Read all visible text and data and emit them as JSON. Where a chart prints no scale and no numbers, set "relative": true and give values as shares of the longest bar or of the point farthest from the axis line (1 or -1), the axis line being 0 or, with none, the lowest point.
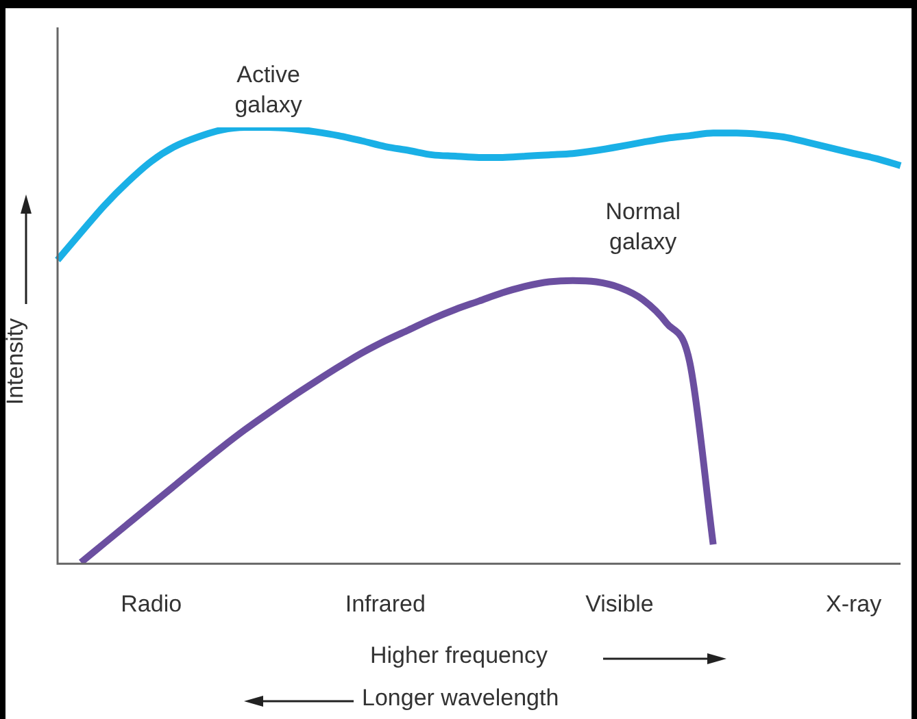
{
  "chart_data": {
    "type": "line",
    "relative": true,
    "xlabel": "Higher frequency",
    "ylabel": "Intensity",
    "annotations": [
      "Longer wavelength"
    ],
    "categories": [
      null,
      null,
      null,
      null,
      "Radio",
      null,
      null,
      null,
      null,
      null,
      null,
      null,
      null,
      null,
      "Infrared",
      null,
      null,
      null,
      null,
      null,
      null,
      null,
      null,
      null,
      "Visible",
      null,
      null,
      null,
      null,
      null,
      null,
      null,
      null,
      null,
      "X-ray",
      null,
      null
    ],
    "series": [
      {
        "name": "Active galaxy",
        "color": "#1ab0e6",
        "values": [
          0.696,
          0.759,
          0.821,
          0.875,
          0.922,
          0.956,
          0.978,
          0.994,
          1,
          1,
          0.997,
          0.99,
          0.981,
          0.969,
          0.956,
          0.947,
          0.937,
          0.934,
          0.931,
          0.931,
          0.934,
          0.937,
          0.94,
          0.947,
          0.956,
          0.966,
          0.975,
          0.981,
          0.987,
          0.987,
          0.984,
          0.978,
          0.966,
          0.953,
          0.94,
          0.928,
          0.912
        ]
      },
      {
        "name": "Normal galaxy",
        "color": "#6b4fa0",
        "values": [
          null,
          0.003,
          0.047,
          0.091,
          0.135,
          0.179,
          0.223,
          0.266,
          0.307,
          0.345,
          0.382,
          0.417,
          0.451,
          0.483,
          0.511,
          0.536,
          0.561,
          0.583,
          0.602,
          0.621,
          0.636,
          0.646,
          0.649,
          0.646,
          0.633,
          0.605,
          0.552,
          0.461,
          0.044,
          null,
          null,
          null,
          null,
          null,
          null,
          null,
          null
        ]
      }
    ]
  }
}
